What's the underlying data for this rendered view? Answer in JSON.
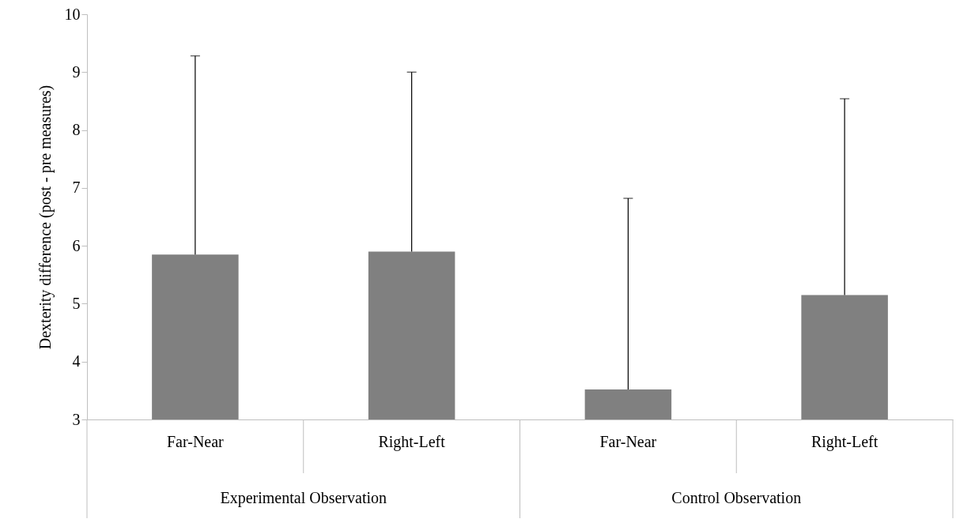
{
  "chart_data": {
    "type": "bar",
    "ylabel": "Dexterity difference (post - pre measures)",
    "categories": [
      "Far-Near",
      "Right-Left",
      "Far-Near",
      "Right-Left"
    ],
    "values": [
      5.85,
      5.9,
      3.52,
      5.15
    ],
    "errors": [
      [
        5.85,
        9.28
      ],
      [
        5.9,
        9.0
      ],
      [
        3.52,
        6.82
      ],
      [
        5.15,
        8.54
      ]
    ],
    "color": "#808080",
    "ylim": [
      3,
      10
    ],
    "yticks": [
      3,
      4,
      5,
      6,
      7,
      8,
      9,
      10
    ],
    "annotations": [
      "Experimental Observation",
      "Control Observation"
    ]
  }
}
